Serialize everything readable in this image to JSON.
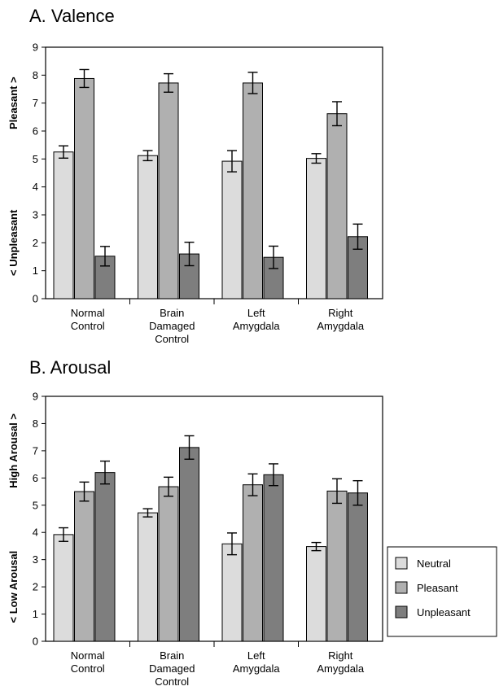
{
  "chart_data": [
    {
      "type": "bar",
      "title": "A. Valence",
      "ylabel_top": "Pleasant >",
      "ylabel_bottom": "< Unpleasant",
      "ylim": [
        0,
        9
      ],
      "yticks": [
        "0",
        "1",
        "2",
        "3",
        "4",
        "5",
        "6",
        "7",
        "8",
        "9"
      ],
      "categories": [
        [
          "Normal",
          "Control"
        ],
        [
          "Brain",
          "Damaged",
          "Control"
        ],
        [
          "Left",
          "Amygdala"
        ],
        [
          "Right",
          "Amygdala"
        ]
      ],
      "series": [
        {
          "name": "Neutral",
          "color": "#dcdcdc",
          "values": [
            5.25,
            5.12,
            4.92,
            5.02
          ],
          "errors": [
            0.22,
            0.18,
            0.38,
            0.17
          ]
        },
        {
          "name": "Pleasant",
          "color": "#b0b0b0",
          "values": [
            7.88,
            7.72,
            7.72,
            6.62
          ],
          "errors": [
            0.32,
            0.33,
            0.38,
            0.43
          ]
        },
        {
          "name": "Unpleasant",
          "color": "#7e7e7e",
          "values": [
            1.52,
            1.6,
            1.48,
            2.22
          ],
          "errors": [
            0.35,
            0.42,
            0.4,
            0.45
          ]
        }
      ],
      "grid": false
    },
    {
      "type": "bar",
      "title": "B. Arousal",
      "ylabel_top": "High Arousal >",
      "ylabel_bottom": "< Low Arousal",
      "ylim": [
        0,
        9
      ],
      "yticks": [
        "0",
        "1",
        "2",
        "3",
        "4",
        "5",
        "6",
        "7",
        "8",
        "9"
      ],
      "categories": [
        [
          "Normal",
          "Control"
        ],
        [
          "Brain",
          "Damaged",
          "Control"
        ],
        [
          "Left",
          "Amygdala"
        ],
        [
          "Right",
          "Amygdala"
        ]
      ],
      "series": [
        {
          "name": "Neutral",
          "color": "#dcdcdc",
          "values": [
            3.92,
            4.72,
            3.58,
            3.48
          ],
          "errors": [
            0.25,
            0.15,
            0.4,
            0.15
          ]
        },
        {
          "name": "Pleasant",
          "color": "#b0b0b0",
          "values": [
            5.5,
            5.68,
            5.75,
            5.52
          ],
          "errors": [
            0.35,
            0.35,
            0.4,
            0.45
          ]
        },
        {
          "name": "Unpleasant",
          "color": "#7e7e7e",
          "values": [
            6.2,
            7.12,
            6.12,
            5.45
          ],
          "errors": [
            0.42,
            0.43,
            0.4,
            0.45
          ]
        }
      ],
      "grid": false,
      "legend": {
        "placement": "right",
        "entries": [
          "Neutral",
          "Pleasant",
          "Unpleasant"
        ]
      }
    }
  ]
}
